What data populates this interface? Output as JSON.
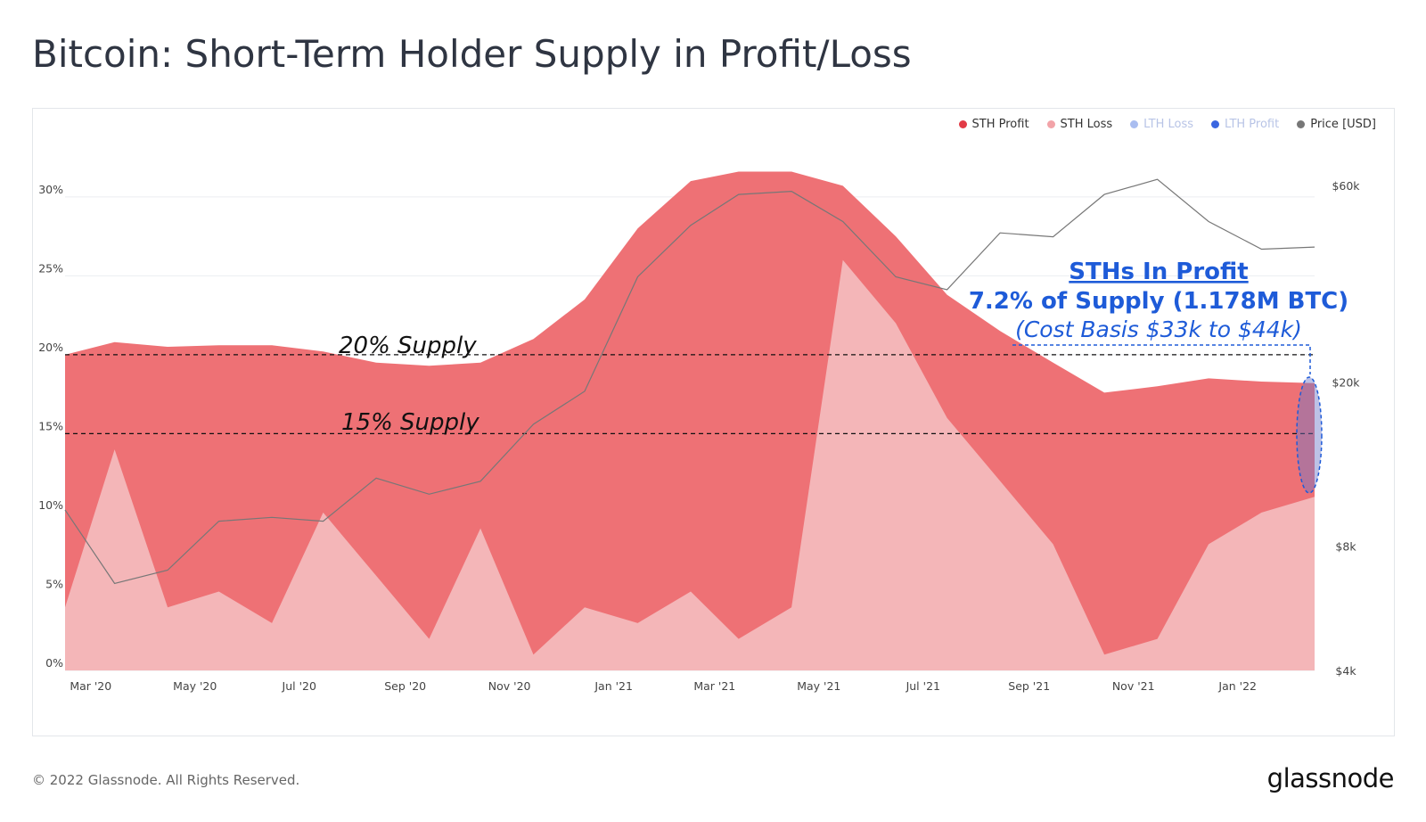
{
  "title": "Bitcoin: Short-Term Holder Supply in Profit/Loss",
  "footer": {
    "copyright": "© 2022 Glassnode. All Rights Reserved.",
    "logo": "glassnode"
  },
  "watermark": "glassnode",
  "legend": [
    {
      "label": "STH Profit",
      "color": "#e23b46",
      "active": true
    },
    {
      "label": "STH Loss",
      "color": "#f2a3a8",
      "active": true
    },
    {
      "label": "LTH Loss",
      "color": "#a9bdf0",
      "active": false
    },
    {
      "label": "LTH Profit",
      "color": "#3a66e0",
      "active": false
    },
    {
      "label": "Price [USD]",
      "color": "#777777",
      "active": true
    }
  ],
  "annotations": {
    "supply_20": "20% Supply",
    "supply_15": "15% Supply",
    "callout_title": "STHs In Profit",
    "callout_line2": "7.2% of Supply (1.178M BTC)",
    "callout_line3": "(Cost Basis $33k to $44k)"
  },
  "chart_data": {
    "type": "area",
    "x_tick_labels": [
      "Mar '20",
      "May '20",
      "Jul '20",
      "Sep '20",
      "Nov '20",
      "Jan '21",
      "Mar '21",
      "May '21",
      "Jul '21",
      "Sep '21",
      "Nov '21",
      "Jan '22"
    ],
    "y_left": {
      "ticks": [
        "0%",
        "5%",
        "10%",
        "15%",
        "20%",
        "25%",
        "30%"
      ],
      "range": [
        0,
        34
      ]
    },
    "y_right": {
      "ticks": [
        "$4k",
        "$8k",
        "$20k",
        "$60k"
      ],
      "scale": "log",
      "range": [
        4000,
        80000
      ]
    },
    "reference_lines": [
      20,
      15
    ],
    "x": [
      "2020-02-15",
      "2020-03-15",
      "2020-04-15",
      "2020-05-15",
      "2020-06-15",
      "2020-07-15",
      "2020-08-15",
      "2020-09-15",
      "2020-10-15",
      "2020-11-15",
      "2020-12-15",
      "2021-01-15",
      "2021-02-15",
      "2021-03-15",
      "2021-04-15",
      "2021-05-15",
      "2021-06-15",
      "2021-07-15",
      "2021-08-15",
      "2021-09-15",
      "2021-10-15",
      "2021-11-15",
      "2021-12-15",
      "2022-01-15",
      "2022-02-15"
    ],
    "series": [
      {
        "name": "STH Loss",
        "color": "#f4b6b8",
        "values": [
          4,
          14,
          4,
          5,
          3,
          10,
          6,
          2,
          9,
          1,
          4,
          3,
          5,
          2,
          4,
          26,
          22,
          16,
          12,
          8,
          1,
          2,
          8,
          10,
          11
        ]
      },
      {
        "name": "STH Profit",
        "color": "#ee7175",
        "values": [
          20,
          20.8,
          20.5,
          20.6,
          20.6,
          20.2,
          19.5,
          19.3,
          19.5,
          21.0,
          23.5,
          28.0,
          31.0,
          31.6,
          31.6,
          30.7,
          27.5,
          23.8,
          21.5,
          19.5,
          17.6,
          18.0,
          18.5,
          18.3,
          18.2
        ]
      },
      {
        "name": "Price [USD]",
        "color": "#777777",
        "values": [
          9800,
          6500,
          7000,
          9200,
          9400,
          9200,
          11700,
          10700,
          11500,
          15800,
          19000,
          36000,
          48000,
          57000,
          58000,
          49000,
          36000,
          33500,
          46000,
          45000,
          57000,
          62000,
          49000,
          42000,
          42500
        ]
      }
    ]
  }
}
